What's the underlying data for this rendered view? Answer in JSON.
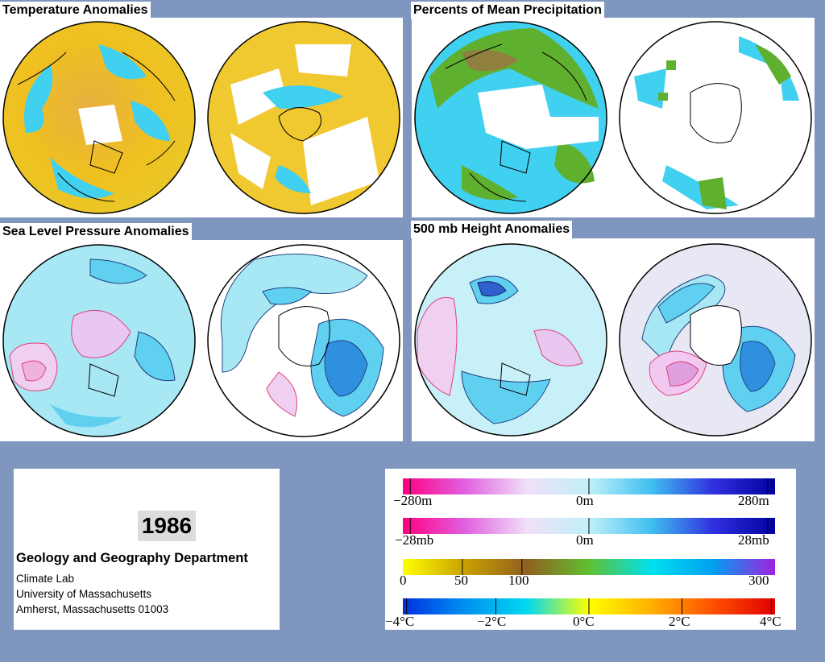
{
  "panels": {
    "temperature": {
      "title": "Temperature Anomalies"
    },
    "precipitation": {
      "title": "Percents of Mean Precipitation"
    },
    "slp": {
      "title": "Sea Level Pressure Anomalies"
    },
    "height500": {
      "title": "500 mb Height Anomalies"
    }
  },
  "info": {
    "year": "1986",
    "department": "Geology and Geography Department",
    "lab": "Climate Lab",
    "university": "University of Massachusetts",
    "address": "Amherst, Massachusetts 01003"
  },
  "legend": {
    "height": {
      "min": "−280m",
      "mid": "0m",
      "max": "280m",
      "colors": [
        "#ff0080",
        "#e060e0",
        "#f0e0f8",
        "#c0f0f8",
        "#40c0f0",
        "#3030e0",
        "#0000a0"
      ]
    },
    "pressure": {
      "min": "−28mb",
      "mid": "0m",
      "max": "28mb",
      "colors": [
        "#ff0080",
        "#e060e0",
        "#f0e0f8",
        "#c0f0f8",
        "#40c0f0",
        "#3030e0",
        "#0000a0"
      ]
    },
    "precip": {
      "t0": "0",
      "t50": "50",
      "t100": "100",
      "t300": "300",
      "colors": [
        "#ffff00",
        "#c8a000",
        "#906020",
        "#60c030",
        "#00e0f0",
        "#00a0f0",
        "#a020e0"
      ]
    },
    "temp": {
      "min": "−4°C",
      "m2": "−2°C",
      "mid": "0°C",
      "p2": "2°C",
      "max": "4°C",
      "colors": [
        "#0030e0",
        "#0090f0",
        "#00d8f0",
        "#ffff00",
        "#ffb000",
        "#ff5000",
        "#e00000"
      ]
    }
  }
}
